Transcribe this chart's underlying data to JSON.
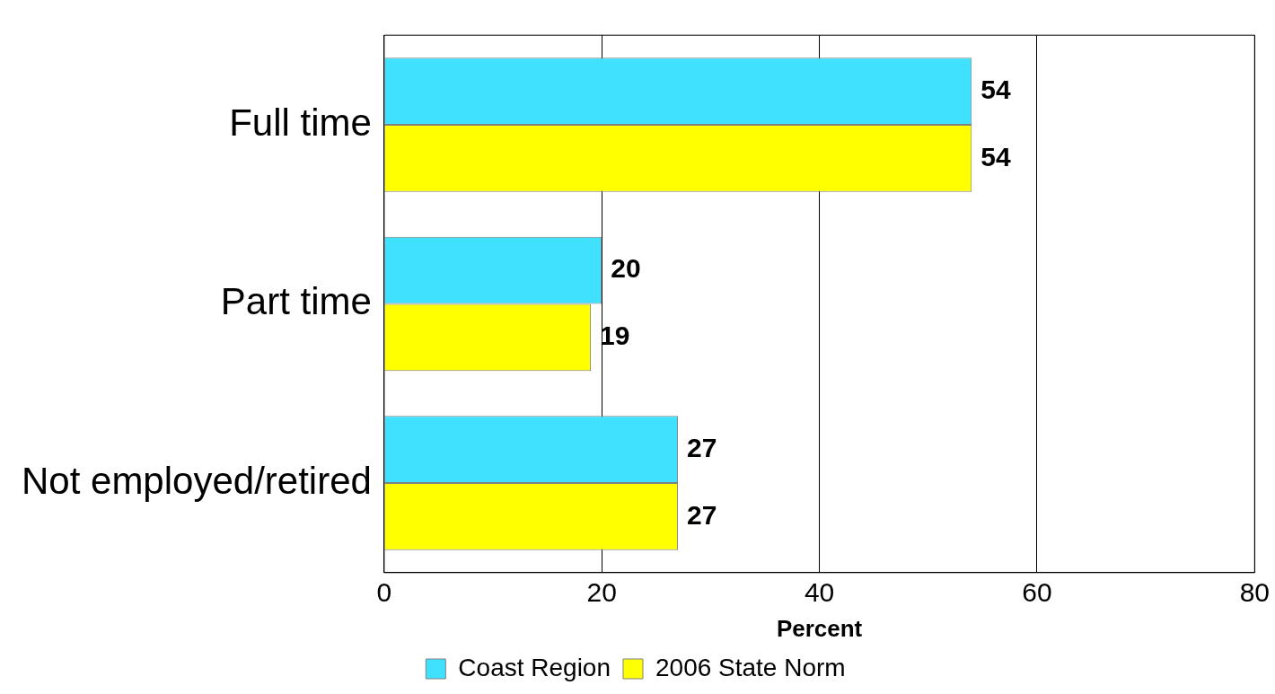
{
  "chart_data": {
    "type": "bar",
    "orientation": "horizontal",
    "xlabel": "Percent",
    "categories": [
      "Full time",
      "Part time",
      "Not employed/retired"
    ],
    "series": [
      {
        "name": "Coast Region",
        "color": "#40e0ff",
        "values": [
          54,
          20,
          27
        ]
      },
      {
        "name": "2006 State Norm",
        "color": "#ffff00",
        "values": [
          54,
          19,
          27
        ]
      }
    ],
    "xlim": [
      0,
      80
    ],
    "xticks": [
      0,
      20,
      40,
      60,
      80
    ],
    "grid": "x",
    "legend": "bottom",
    "data_labels": true
  }
}
